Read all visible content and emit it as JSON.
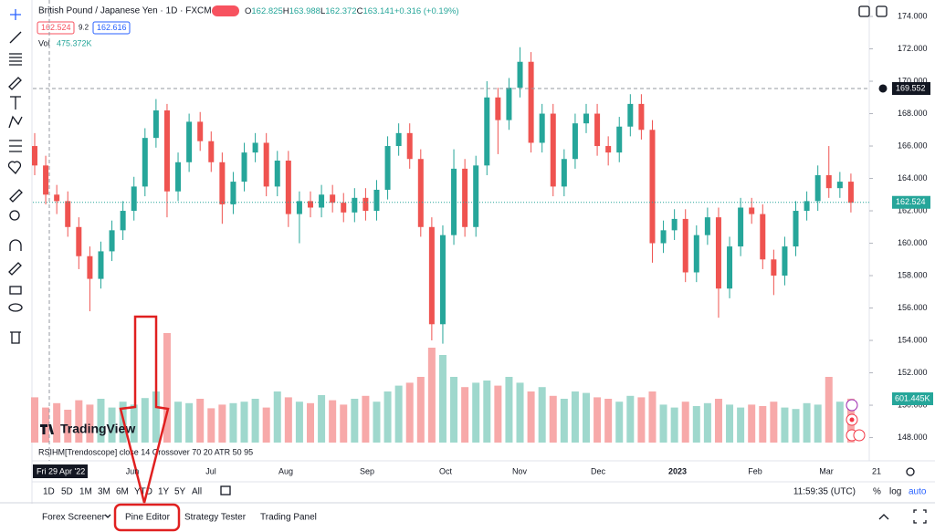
{
  "header": {
    "symbol": "British Pound / Japanese Yen · 1D · FXCM",
    "ohlc": [
      {
        "key": "O",
        "value": 162.825
      },
      {
        "key": "H",
        "value": 163.988
      },
      {
        "key": "L",
        "value": 162.372
      },
      {
        "key": "C",
        "value": 163.141
      }
    ],
    "change": "+0.316 (+0.19%)",
    "sell": 162.524,
    "spread": 9.2,
    "buy": 162.616,
    "volume_label": "Vol",
    "volume_value": "475.372K"
  },
  "indicator": "RSIHM[Trendoscope] close 14 Crossover 70 20 ATR 50 95",
  "logo": "TradingView",
  "chart_data": {
    "type": "candlestick",
    "open": [
      166.0,
      164.8,
      163.0,
      162.6,
      161.0,
      159.2,
      157.8,
      159.5,
      160.8,
      162.0,
      163.5,
      166.5,
      168.2,
      163.2,
      165.0,
      167.5,
      166.3,
      165.0,
      162.4,
      163.8,
      165.6,
      166.2,
      163.5,
      165.1,
      161.8,
      162.6,
      162.2,
      163.0,
      162.5,
      161.9,
      162.8,
      162.0,
      163.3,
      166.0,
      166.8,
      165.2,
      161.0,
      155.0,
      160.5,
      164.6,
      161.0,
      164.8,
      169.0,
      167.6,
      169.6,
      171.2,
      166.2,
      168.0,
      163.5,
      165.2,
      167.4,
      168.0,
      166.0,
      165.6,
      167.2,
      168.6,
      167.0,
      160.0,
      160.8,
      161.5,
      158.2,
      160.5,
      161.6,
      157.2,
      159.8,
      162.2,
      161.8,
      159.0,
      158.0,
      159.8,
      162.0,
      162.6,
      164.2,
      163.4,
      163.8
    ],
    "high": [
      166.8,
      165.4,
      163.6,
      163.2,
      161.6,
      159.8,
      160.1,
      161.4,
      162.6,
      164.1,
      167.1,
      168.9,
      168.6,
      165.6,
      168.0,
      168.1,
      166.9,
      165.6,
      164.4,
      166.2,
      166.8,
      166.8,
      165.7,
      165.7,
      163.2,
      163.2,
      163.6,
      163.6,
      163.1,
      163.4,
      163.4,
      163.9,
      166.6,
      167.4,
      167.4,
      165.8,
      161.6,
      161.1,
      165.8,
      165.2,
      165.4,
      170.0,
      169.6,
      170.2,
      172.1,
      171.8,
      168.6,
      168.6,
      165.8,
      168.0,
      168.6,
      168.6,
      166.6,
      167.8,
      169.2,
      169.2,
      167.6,
      161.4,
      162.1,
      162.1,
      161.1,
      162.2,
      162.2,
      160.4,
      162.8,
      162.8,
      162.4,
      159.6,
      160.4,
      162.6,
      163.2,
      164.8,
      166.0,
      164.4,
      164.3
    ],
    "low": [
      164.2,
      162.4,
      161.8,
      160.4,
      158.4,
      155.8,
      157.2,
      158.9,
      160.2,
      161.4,
      162.9,
      165.9,
      161.6,
      162.6,
      164.4,
      165.7,
      164.4,
      161.2,
      161.8,
      163.2,
      165.0,
      162.9,
      162.9,
      161.0,
      160.0,
      161.6,
      161.6,
      161.9,
      161.3,
      161.3,
      161.4,
      161.4,
      162.7,
      165.4,
      164.6,
      160.4,
      154.0,
      153.8,
      159.9,
      160.4,
      160.4,
      164.2,
      165.5,
      167.0,
      169.0,
      165.6,
      165.6,
      162.9,
      162.9,
      164.6,
      166.8,
      165.4,
      164.8,
      165.0,
      166.6,
      166.4,
      158.8,
      159.4,
      160.2,
      157.6,
      157.6,
      159.9,
      155.4,
      156.6,
      159.2,
      161.2,
      158.4,
      156.8,
      157.4,
      159.2,
      161.4,
      162.0,
      162.8,
      162.8,
      161.9
    ],
    "close": [
      164.8,
      163.0,
      162.6,
      161.0,
      159.2,
      157.8,
      159.5,
      160.8,
      162.0,
      163.5,
      166.5,
      168.2,
      163.2,
      165.0,
      167.5,
      166.3,
      165.0,
      162.4,
      163.8,
      165.6,
      166.2,
      163.5,
      165.1,
      161.8,
      162.6,
      162.2,
      163.0,
      162.5,
      161.9,
      162.8,
      162.0,
      163.3,
      166.0,
      166.8,
      165.2,
      161.0,
      155.0,
      160.5,
      164.6,
      161.0,
      164.8,
      169.0,
      167.6,
      169.6,
      171.2,
      166.2,
      168.0,
      163.5,
      165.2,
      167.4,
      168.0,
      166.0,
      165.6,
      167.2,
      168.6,
      167.0,
      160.0,
      160.8,
      161.5,
      158.2,
      160.5,
      161.6,
      157.2,
      159.8,
      162.2,
      161.8,
      159.0,
      158.0,
      159.8,
      162.0,
      162.6,
      164.2,
      163.4,
      163.8,
      162.5
    ],
    "volume": [
      620,
      480,
      540,
      450,
      580,
      520,
      600,
      480,
      560,
      520,
      610,
      700,
      1500,
      560,
      540,
      600,
      470,
      520,
      540,
      560,
      600,
      480,
      700,
      620,
      560,
      540,
      650,
      580,
      520,
      600,
      640,
      560,
      700,
      780,
      820,
      900,
      1300,
      1200,
      900,
      760,
      820,
      850,
      780,
      900,
      820,
      700,
      760,
      640,
      600,
      700,
      680,
      620,
      600,
      560,
      640,
      620,
      700,
      520,
      480,
      560,
      500,
      540,
      600,
      520,
      480,
      520,
      500,
      560,
      480,
      460,
      540,
      520,
      900,
      560,
      601.445
    ],
    "up_color": "#26a69a",
    "down_color": "#ef5350",
    "up_volume_color": "#9fd8cd",
    "down_volume_color": "#f7a9a9",
    "ylim": [
      146.6,
      174.7
    ],
    "yticks": [
      {
        "value": 148,
        "label": "148.000"
      },
      {
        "value": 150,
        "label": "150.000"
      },
      {
        "value": 152,
        "label": "152.000"
      },
      {
        "value": 154,
        "label": "154.000"
      },
      {
        "value": 156,
        "label": "156.000"
      },
      {
        "value": 158,
        "label": "158.000"
      },
      {
        "value": 160,
        "label": "160.000"
      },
      {
        "value": 162,
        "label": "162.000"
      },
      {
        "value": 164,
        "label": "164.000"
      },
      {
        "value": 166,
        "label": "166.000"
      },
      {
        "value": 168,
        "label": "168.000"
      },
      {
        "value": 170,
        "label": "170.000"
      },
      {
        "value": 172,
        "label": "172.000"
      },
      {
        "value": 174,
        "label": "174.000"
      }
    ],
    "xticks": [
      "Jun",
      "Jul",
      "Aug",
      "Sep",
      "Oct",
      "Nov",
      "Dec",
      "2023",
      "Feb",
      "Mar",
      "21"
    ],
    "crosshair_label": "Fri 29 Apr '22",
    "crosshair_price": 169.552,
    "last_price": 162.524,
    "volume_tag": "601.445K"
  },
  "toolbar": {
    "timeframes": [
      "1D",
      "5D",
      "1M",
      "3M",
      "6M",
      "YTD",
      "1Y",
      "5Y",
      "All"
    ],
    "clock": "11:59:35 (UTC)",
    "percent": "%",
    "log": "log",
    "auto": "auto"
  },
  "tabs": [
    "Forex Screener",
    "Pine Editor",
    "Strategy Tester",
    "Trading Panel"
  ]
}
